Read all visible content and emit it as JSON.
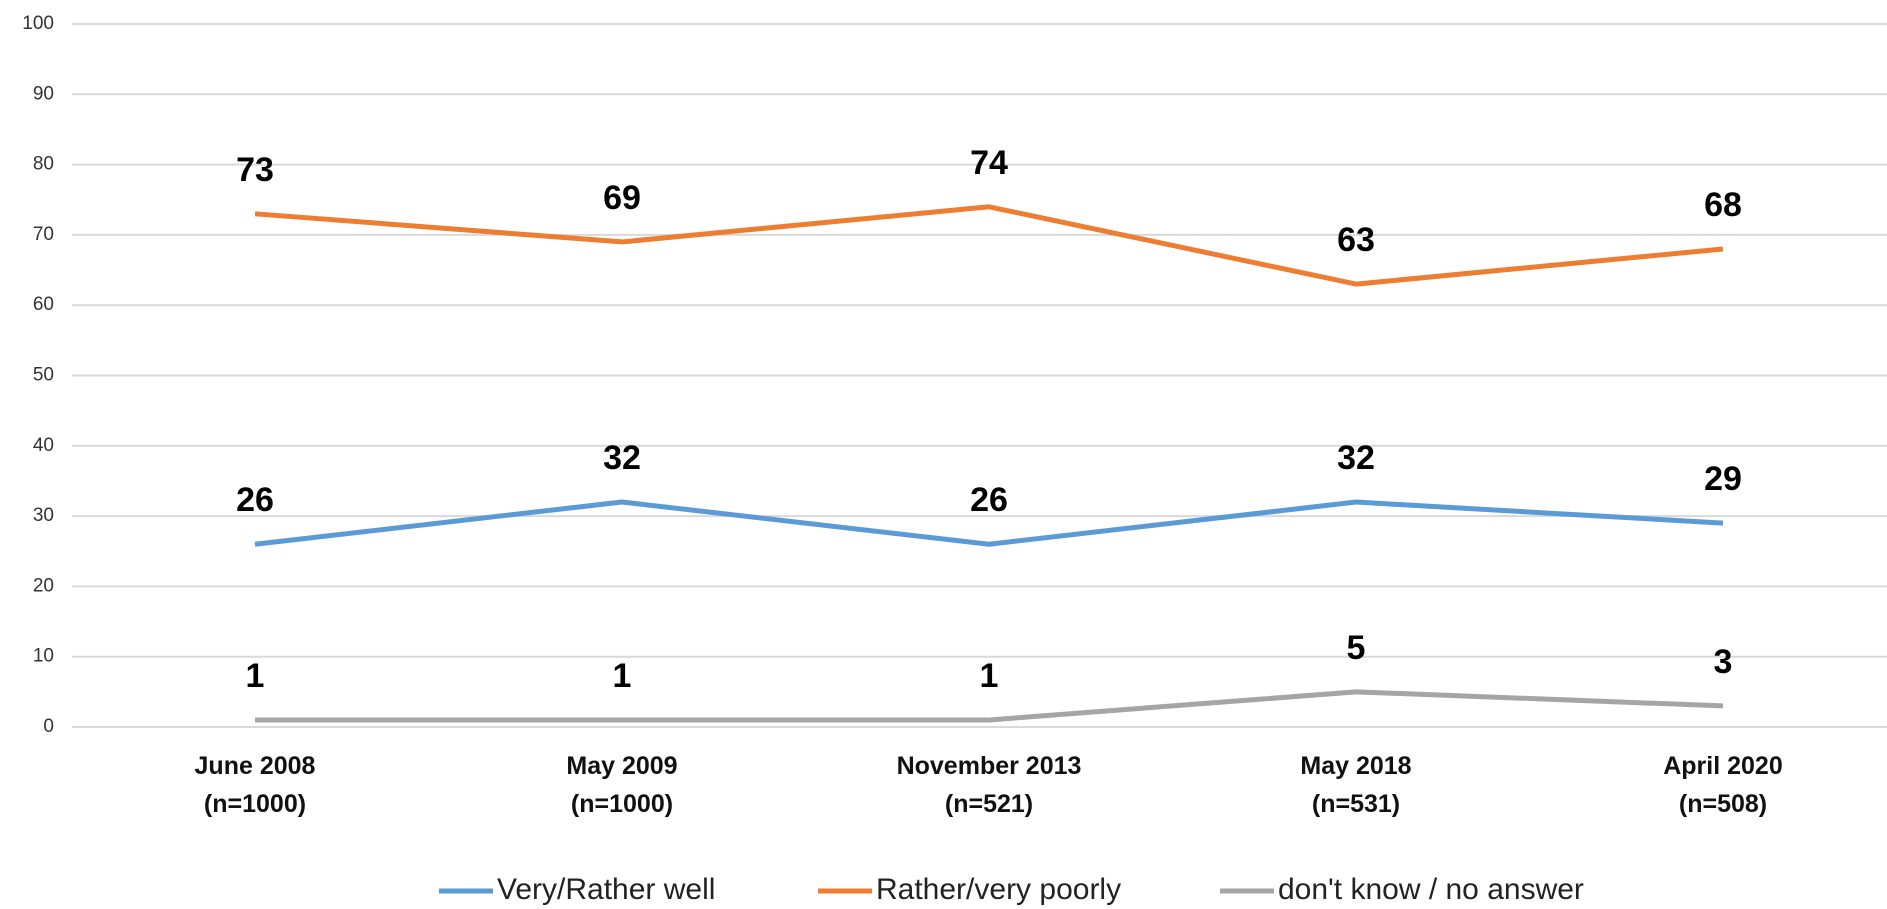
{
  "chart_data": {
    "type": "line",
    "categories": [
      "June 2008\n(n=1000)",
      "May 2009\n(n=1000)",
      "November 2013\n(n=521)",
      "May 2018\n(n=531)",
      "April 2020\n(n=508)"
    ],
    "series": [
      {
        "name": "Very/Rather well",
        "color": "#5b9bd5",
        "values": [
          26,
          32,
          26,
          32,
          29
        ]
      },
      {
        "name": "Rather/very poorly",
        "color": "#ed7d31",
        "values": [
          73,
          69,
          74,
          63,
          68
        ]
      },
      {
        "name": "don't know / no answer",
        "color": "#a5a5a5",
        "values": [
          1,
          1,
          1,
          5,
          3
        ]
      }
    ],
    "ylim": [
      0,
      100
    ],
    "yticks": [
      0,
      10,
      20,
      30,
      40,
      50,
      60,
      70,
      80,
      90,
      100
    ],
    "grid": true,
    "legend": "bottom"
  }
}
